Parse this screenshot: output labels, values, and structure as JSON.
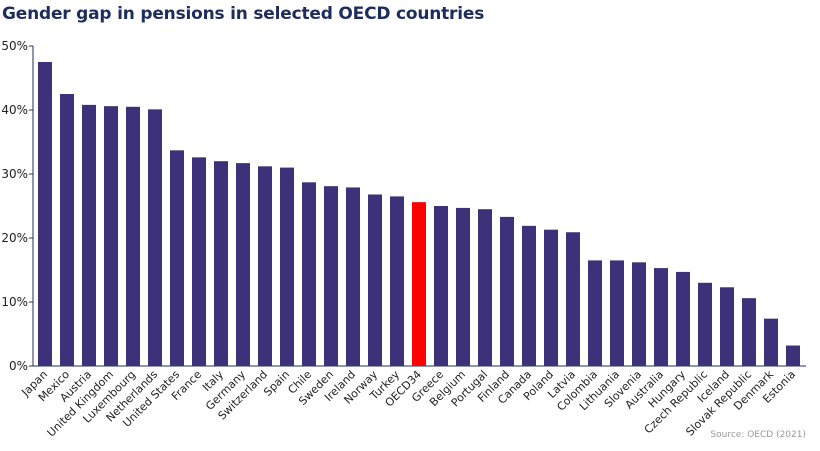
{
  "title": "Gender gap in pensions in selected OECD countries",
  "source": "Source: OECD (2021)",
  "colors": {
    "bar": "#3d317a",
    "highlight": "#ff0000",
    "axis": "#1f2d5c",
    "title": "#1f2d5c"
  },
  "chart_data": {
    "type": "bar",
    "title": "Gender gap in pensions in selected OECD countries",
    "xlabel": "",
    "ylabel": "",
    "ylim": [
      0,
      50
    ],
    "y_tick_format": "percent",
    "yticks": [
      "0%",
      "10%",
      "20%",
      "30%",
      "40%",
      "50%"
    ],
    "grid": false,
    "highlight": "OECD34",
    "categories": [
      "Japan",
      "Mexico",
      "Austria",
      "United Kingdom",
      "Luxembourg",
      "Netherlands",
      "United States",
      "France",
      "Italy",
      "Germany",
      "Switzerland",
      "Spain",
      "Chile",
      "Sweden",
      "Ireland",
      "Norway",
      "Turkey",
      "OECD34",
      "Greece",
      "Belgium",
      "Portugal",
      "Finland",
      "Canada",
      "Poland",
      "Latvia",
      "Colombia",
      "Lithuania",
      "Slovenia",
      "Australia",
      "Hungary",
      "Czech Republic",
      "Iceland",
      "Slovak Republic",
      "Denmark",
      "Estonia"
    ],
    "values": [
      47.5,
      42.5,
      40.8,
      40.6,
      40.5,
      40.1,
      33.7,
      32.6,
      32.0,
      31.7,
      31.2,
      31.0,
      28.7,
      28.1,
      27.9,
      26.8,
      26.5,
      25.6,
      25.0,
      24.7,
      24.5,
      23.3,
      21.9,
      21.3,
      20.9,
      16.5,
      16.5,
      16.2,
      15.3,
      14.7,
      13.0,
      12.3,
      10.6,
      7.4,
      3.2
    ]
  }
}
